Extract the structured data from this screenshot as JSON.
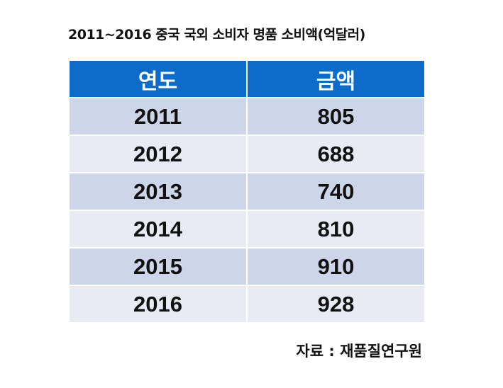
{
  "chart_data": {
    "type": "table",
    "title": "2011~2016 중국 국외 소비자 명품 소비액(억달러)",
    "columns": [
      "연도",
      "금액"
    ],
    "rows": [
      [
        "2011",
        "805"
      ],
      [
        "2012",
        "688"
      ],
      [
        "2013",
        "740"
      ],
      [
        "2014",
        "810"
      ],
      [
        "2015",
        "910"
      ],
      [
        "2016",
        "928"
      ]
    ],
    "categories": [
      "2011",
      "2012",
      "2013",
      "2014",
      "2015",
      "2016"
    ],
    "values": [
      805,
      688,
      740,
      810,
      910,
      928
    ]
  },
  "source": "자료 : 재품질연구원",
  "colors": {
    "header_bg": "#0d6cc9",
    "row_odd_bg": "#cdd5e8",
    "row_even_bg": "#e8ebf4"
  }
}
